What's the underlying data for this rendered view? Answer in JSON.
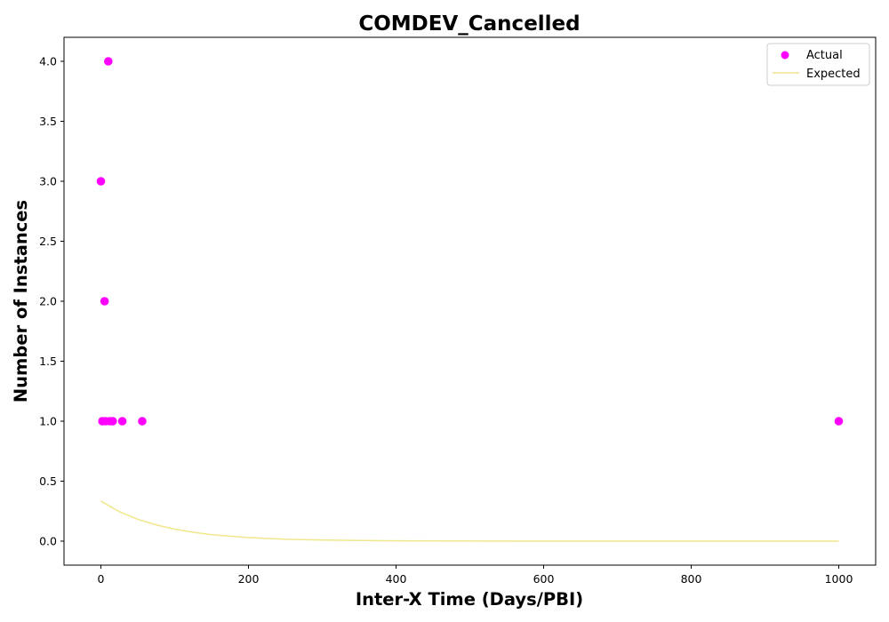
{
  "chart_data": {
    "type": "scatter",
    "title": "COMDEV_Cancelled",
    "xlabel": "Inter-X Time (Days/PBI)",
    "ylabel": "Number of Instances",
    "xlim": [
      -50,
      1050
    ],
    "ylim": [
      -0.2,
      4.2
    ],
    "xticks": [
      0,
      200,
      400,
      600,
      800,
      1000
    ],
    "yticks": [
      0.0,
      0.5,
      1.0,
      1.5,
      2.0,
      2.5,
      3.0,
      3.5,
      4.0
    ],
    "xtick_labels": [
      "0",
      "200",
      "400",
      "600",
      "800",
      "1000"
    ],
    "ytick_labels": [
      "0.0",
      "0.5",
      "1.0",
      "1.5",
      "2.0",
      "2.5",
      "3.0",
      "3.5",
      "4.0"
    ],
    "grid": false,
    "legend_position": "top-right",
    "series": [
      {
        "name": "Actual",
        "kind": "scatter",
        "color": "#ff00ff",
        "points": [
          {
            "x": 0,
            "y": 3
          },
          {
            "x": 2,
            "y": 1
          },
          {
            "x": 5,
            "y": 2
          },
          {
            "x": 6,
            "y": 1
          },
          {
            "x": 10,
            "y": 4
          },
          {
            "x": 12,
            "y": 1
          },
          {
            "x": 16,
            "y": 1
          },
          {
            "x": 29,
            "y": 1
          },
          {
            "x": 56,
            "y": 1
          },
          {
            "x": 1000,
            "y": 1
          }
        ]
      },
      {
        "name": "Expected",
        "kind": "line",
        "color": "#f0e68c",
        "points": [
          {
            "x": 0,
            "y": 0.333
          },
          {
            "x": 25,
            "y": 0.246
          },
          {
            "x": 50,
            "y": 0.182
          },
          {
            "x": 75,
            "y": 0.135
          },
          {
            "x": 100,
            "y": 0.1
          },
          {
            "x": 125,
            "y": 0.074
          },
          {
            "x": 150,
            "y": 0.054
          },
          {
            "x": 200,
            "y": 0.03
          },
          {
            "x": 250,
            "y": 0.016
          },
          {
            "x": 300,
            "y": 0.009
          },
          {
            "x": 400,
            "y": 0.003
          },
          {
            "x": 500,
            "y": 0.001
          },
          {
            "x": 600,
            "y": 0.0
          },
          {
            "x": 800,
            "y": 0.0
          },
          {
            "x": 1000,
            "y": 0.0
          }
        ]
      }
    ]
  }
}
